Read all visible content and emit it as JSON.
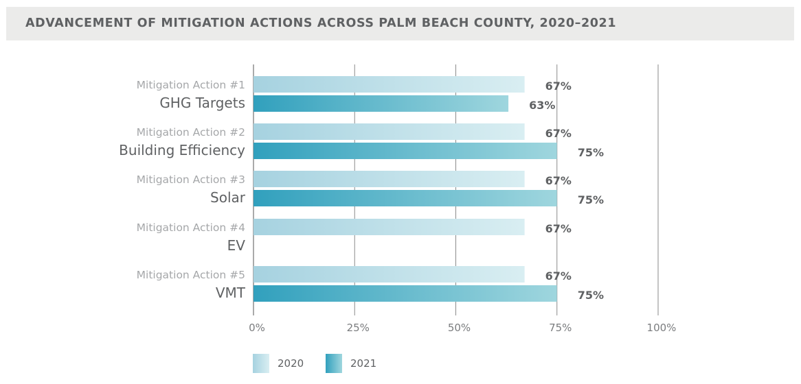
{
  "title": "ADVANCEMENT OF MITIGATION ACTIONS ACROSS PALM BEACH COUNTY, 2020–2021",
  "colors": {
    "bar_2020_dark": "#a6d2e0",
    "bar_2020_light": "#d9eef2",
    "bar_2021_dark": "#31a0bd",
    "bar_2021_light": "#9fd6de",
    "grid": "#8a8a8a",
    "text": "#5f6163",
    "sublabel": "#a5a7a9"
  },
  "legend": [
    {
      "label": "2020",
      "series": "2020"
    },
    {
      "label": "2021",
      "series": "2021"
    }
  ],
  "chart_data": {
    "type": "bar",
    "orientation": "horizontal",
    "title": "ADVANCEMENT OF MITIGATION ACTIONS ACROSS PALM BEACH COUNTY, 2020–2021",
    "xlim": [
      0,
      100
    ],
    "x_ticks": [
      "0%",
      "25%",
      "50%",
      "75%",
      "100%"
    ],
    "grid": true,
    "legend_position": "bottom",
    "categories": [
      {
        "sublabel": "Mitigation Action #1",
        "label": "GHG Targets"
      },
      {
        "sublabel": "Mitigation Action #2",
        "label": "Building Efficiency"
      },
      {
        "sublabel": "Mitigation Action #3",
        "label": "Solar"
      },
      {
        "sublabel": "Mitigation Action #4",
        "label": "EV"
      },
      {
        "sublabel": "Mitigation Action #5",
        "label": "VMT"
      }
    ],
    "series": [
      {
        "name": "2020",
        "values": [
          67,
          67,
          67,
          67,
          67
        ],
        "value_labels": [
          "67%",
          "67%",
          "67%",
          "67%",
          "67%"
        ]
      },
      {
        "name": "2021",
        "values": [
          63,
          75,
          75,
          null,
          75
        ],
        "value_labels": [
          "63%",
          "75%",
          "75%",
          "",
          "75%"
        ]
      }
    ]
  }
}
